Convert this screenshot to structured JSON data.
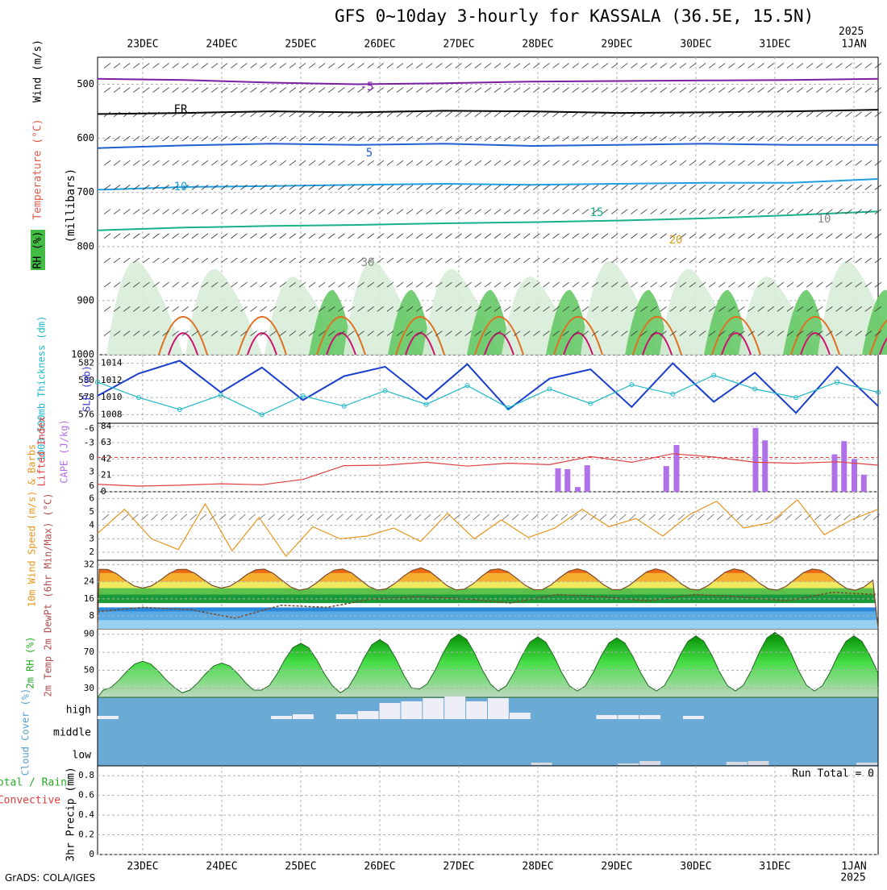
{
  "title": "GFS 0~10day 3-hourly for KASSALA (36.5E, 15.5N)",
  "year_label": "2025",
  "footer": "GrADS: COLA/IGES",
  "chart_data": [
    {
      "panel": "upper-air",
      "type": "line",
      "dates": [
        "23DEC",
        "24DEC",
        "25DEC",
        "26DEC",
        "27DEC",
        "28DEC",
        "29DEC",
        "30DEC",
        "31DEC",
        "1JAN"
      ],
      "y_ticks": [
        "500",
        "600",
        "700",
        "800",
        "900",
        "1000"
      ],
      "ylim": [
        450,
        1000
      ],
      "ylabel_parts": [
        "RH (%)",
        "Temperature (°C)",
        "Wind (m/s)"
      ],
      "yunit": "(millibars)",
      "contour_labels": [
        "-5",
        "FR",
        "5",
        "10",
        "15",
        "20",
        "30",
        "10"
      ],
      "isotherms": [
        {
          "name": "-5",
          "color": "#7a1fa2",
          "level": [
            490,
            492,
            497,
            500,
            498,
            495,
            494,
            493,
            492,
            490
          ]
        },
        {
          "name": "FR",
          "color": "#000000",
          "level": [
            555,
            553,
            550,
            552,
            549,
            550,
            553,
            552,
            550,
            547
          ]
        },
        {
          "name": "5",
          "color": "#1f5fd0",
          "level": [
            618,
            613,
            610,
            612,
            610,
            614,
            612,
            610,
            612,
            612
          ]
        },
        {
          "name": "10",
          "color": "#1e9fe0",
          "level": [
            695,
            690,
            688,
            686,
            684,
            686,
            684,
            682,
            682,
            675
          ]
        },
        {
          "name": "15",
          "color": "#17b08a",
          "level": [
            770,
            765,
            762,
            760,
            757,
            755,
            752,
            748,
            742,
            735
          ]
        }
      ]
    },
    {
      "panel": "slp-thickness",
      "type": "line",
      "left_ticks": [
        "582",
        "580",
        "578",
        "576"
      ],
      "right_ticks": [
        "1014",
        "1012",
        "1010",
        "1008"
      ],
      "left_label": "1000-500mb Thickness (dm)",
      "right_label": "SLP (mb)",
      "series": [
        {
          "name": "SLP",
          "color": "#1a3fcc",
          "values": [
            1010.2,
            1012.8,
            1014.3,
            1010.6,
            1013.5,
            1009.7,
            1012.5,
            1013.6,
            1009.8,
            1013.9,
            1008.6,
            1012.2,
            1013.3,
            1008.9,
            1014.0,
            1009.5,
            1012.9,
            1008.2,
            1013.6,
            1009.0
          ]
        },
        {
          "name": "Thickness",
          "color": "#20b8c8",
          "values": [
            579.8,
            578.0,
            576.6,
            578.3,
            576.0,
            578.2,
            577.0,
            578.8,
            577.2,
            579.4,
            576.8,
            579.0,
            577.3,
            579.5,
            578.4,
            580.6,
            579.0,
            578.0,
            579.8,
            578.6
          ]
        }
      ]
    },
    {
      "panel": "cape-li",
      "type": "bar",
      "left_ticks": [
        "-6",
        "-3",
        "0",
        "3",
        "6"
      ],
      "right_ticks": [
        "84",
        "63",
        "42",
        "21",
        "0"
      ],
      "left_label": "Lifted Index",
      "right_label": "CAPE (J/kg)",
      "cape_bars": [
        {
          "day": 5.25,
          "value": 30
        },
        {
          "day": 5.37,
          "value": 29
        },
        {
          "day": 5.5,
          "value": 6
        },
        {
          "day": 5.62,
          "value": 34
        },
        {
          "day": 6.62,
          "value": 33
        },
        {
          "day": 6.75,
          "value": 60
        },
        {
          "day": 7.75,
          "value": 82
        },
        {
          "day": 7.87,
          "value": 66
        },
        {
          "day": 8.75,
          "value": 48
        },
        {
          "day": 8.87,
          "value": 65
        },
        {
          "day": 9.0,
          "value": 42
        },
        {
          "day": 9.12,
          "value": 22
        }
      ],
      "lifted_index": [
        5.6,
        6.0,
        5.8,
        5.5,
        5.7,
        4.6,
        1.7,
        1.6,
        1.0,
        1.8,
        1.2,
        1.5,
        -0.2,
        1.0,
        -0.8,
        -0.1,
        1.0,
        1.2,
        0.9,
        1.6
      ]
    },
    {
      "panel": "wind10m",
      "type": "line",
      "left_ticks": [
        "6",
        "5",
        "4",
        "3",
        "2"
      ],
      "ylabel": "10m Wind Speed (m/s) & Barbs",
      "series": [
        {
          "name": "speed",
          "color": "#e8961e",
          "values": [
            3.4,
            5.2,
            3.0,
            2.2,
            5.6,
            2.1,
            4.6,
            1.7,
            3.9,
            3.0,
            3.2,
            3.8,
            2.8,
            4.9,
            3.0,
            4.4,
            3.1,
            3.8,
            5.2,
            3.9,
            4.5,
            3.2,
            4.8,
            5.8,
            3.8,
            4.2,
            5.9,
            3.3,
            4.4,
            5.2
          ]
        }
      ]
    },
    {
      "panel": "temp-dewpoint",
      "type": "area",
      "left_ticks": [
        "32",
        "24",
        "16",
        "8"
      ],
      "ylabel": "2m Temp 2m DewPt (6hr Min/Max) (°C)",
      "temp_max": [
        30,
        30,
        30,
        30,
        30.5,
        30,
        30,
        30,
        30
      ],
      "temp_min": [
        21,
        21,
        20,
        20,
        20,
        20,
        20,
        20,
        20
      ],
      "dewpoint": [
        10,
        12,
        11,
        7,
        13,
        12,
        16,
        17,
        16,
        14,
        18,
        17,
        15,
        18,
        17,
        15,
        19,
        18
      ]
    },
    {
      "panel": "rh2m",
      "type": "area",
      "left_ticks": [
        "90",
        "70",
        "50",
        "30"
      ],
      "ylabel": "2m RH (%)",
      "peaks": [
        60,
        58,
        80,
        84,
        90,
        87,
        86,
        88,
        92,
        88
      ],
      "troughs": [
        28,
        25,
        28,
        25,
        29,
        27,
        27,
        27,
        27,
        27
      ]
    },
    {
      "panel": "cloud",
      "type": "bar",
      "levels": [
        "high",
        "middle",
        "low"
      ],
      "ylabel": "Cloud Cover (%)",
      "high_values": [
        2,
        0,
        0,
        0,
        0,
        0,
        0,
        0,
        2,
        4,
        0,
        4,
        8,
        18,
        20,
        24,
        26,
        20,
        24,
        6,
        0,
        0,
        0,
        3,
        3,
        3,
        0,
        2,
        0,
        0,
        0,
        0,
        0,
        0,
        0,
        0
      ],
      "low_values": [
        0,
        0,
        0,
        0,
        0,
        0,
        0,
        0,
        0,
        0,
        0,
        0,
        0,
        0,
        0,
        0,
        0,
        0,
        0,
        0,
        3,
        0,
        0,
        0,
        2,
        5,
        0,
        0,
        0,
        4,
        5,
        0,
        0,
        0,
        0,
        3
      ]
    },
    {
      "panel": "precip",
      "type": "bar",
      "left_ticks": [
        "0.8",
        "0.6",
        "0.4",
        "0.2",
        "0"
      ],
      "ylim": [
        0,
        0.9
      ],
      "ylabel": "3hr Precip (mm)",
      "side_label_total": "Total / Rain",
      "side_label_conv": "Convective",
      "run_total": "Run Total = 0",
      "values": []
    }
  ]
}
